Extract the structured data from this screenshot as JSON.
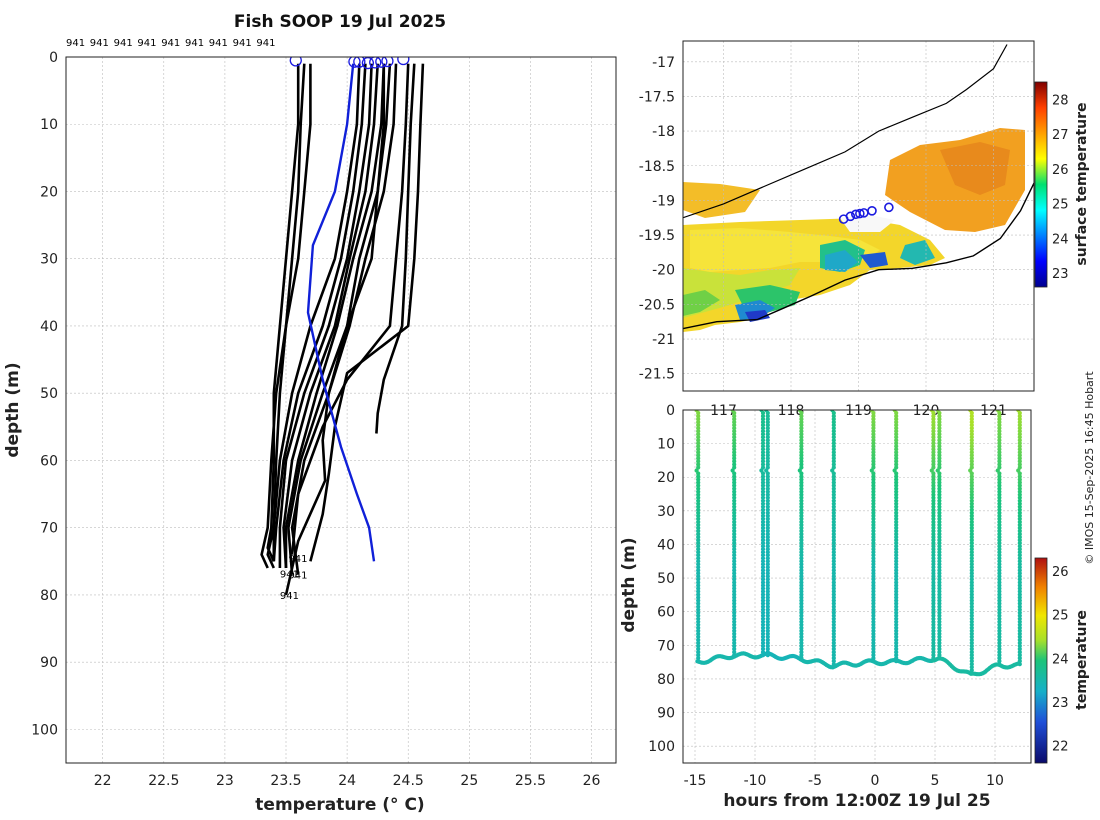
{
  "figure": {
    "credit": "© IMOS 15-Sep-2025 16:45 Hobart"
  },
  "colors": {
    "profile_line": "#000000",
    "mean_profile": "#1020d8",
    "marker_circle": "#1a1ae0",
    "coastline": "#000000"
  },
  "chart_data": [
    {
      "id": "profiles",
      "type": "line",
      "title": "Fish SOOP 19 Jul 2025",
      "xlabel": "temperature (° C)",
      "ylabel": "depth (m)",
      "xlim": [
        21.7,
        26.2
      ],
      "ylim": [
        105,
        0
      ],
      "xticks": [
        "22",
        "22.5",
        "23",
        "23.5",
        "24",
        "24.5",
        "25",
        "25.5",
        "26"
      ],
      "xtick_values": [
        22,
        22.5,
        23,
        23.5,
        24,
        24.5,
        25,
        25.5,
        26
      ],
      "yticks": [
        "0",
        "10",
        "20",
        "30",
        "40",
        "50",
        "60",
        "70",
        "80",
        "90",
        "100"
      ],
      "ytick_values": [
        0,
        10,
        20,
        30,
        40,
        50,
        60,
        70,
        80,
        90,
        100
      ],
      "grid": true,
      "top_labels": [
        "941",
        "941",
        "941",
        "941",
        "941",
        "941",
        "941",
        "941",
        "941"
      ],
      "bottom_annotations": [
        {
          "text": "941",
          "t": 23.52,
          "d": 74.5
        },
        {
          "text": "941",
          "t": 23.45,
          "d": 76.8
        },
        {
          "text": "941",
          "t": 23.52,
          "d": 77.0
        },
        {
          "text": "941",
          "t": 23.45,
          "d": 80.0
        }
      ],
      "surface_markers": [
        {
          "t": 23.58,
          "d": 0.5
        },
        {
          "t": 24.06,
          "d": 0.7
        },
        {
          "t": 24.1,
          "d": 0.7
        },
        {
          "t": 24.17,
          "d": 0.9
        },
        {
          "t": 24.23,
          "d": 0.8
        },
        {
          "t": 24.28,
          "d": 0.7
        },
        {
          "t": 24.33,
          "d": 0.6
        },
        {
          "t": 24.46,
          "d": 0.3
        }
      ],
      "series": [
        {
          "name": "profile-1",
          "t": [
            23.6,
            23.6,
            23.55,
            23.5,
            23.45,
            23.4,
            23.4,
            23.38,
            23.35,
            23.4
          ],
          "d": [
            1,
            10,
            20,
            30,
            40,
            50,
            60,
            70,
            73,
            75
          ]
        },
        {
          "name": "profile-2",
          "t": [
            23.65,
            23.62,
            23.6,
            23.55,
            23.5,
            23.45,
            23.42,
            23.4,
            23.35,
            23.4
          ],
          "d": [
            1,
            10,
            20,
            30,
            40,
            50,
            60,
            70,
            74,
            76
          ]
        },
        {
          "name": "profile-3",
          "t": [
            23.7,
            23.7,
            23.65,
            23.6,
            23.5,
            23.42,
            23.38,
            23.35,
            23.3,
            23.35
          ],
          "d": [
            1,
            10,
            20,
            30,
            40,
            50,
            60,
            70,
            74,
            76
          ]
        },
        {
          "name": "profile-4",
          "t": [
            24.1,
            24.08,
            24.0,
            23.9,
            23.7,
            23.55,
            23.45,
            23.4,
            23.4
          ],
          "d": [
            1,
            10,
            20,
            30,
            40,
            50,
            60,
            70,
            75
          ]
        },
        {
          "name": "profile-5",
          "t": [
            24.15,
            24.12,
            24.05,
            23.95,
            23.8,
            23.6,
            23.48,
            23.42,
            23.4
          ],
          "d": [
            1,
            10,
            20,
            30,
            40,
            50,
            60,
            70,
            75
          ]
        },
        {
          "name": "profile-6",
          "t": [
            24.2,
            24.18,
            24.1,
            24.0,
            23.85,
            23.65,
            23.5,
            23.45,
            23.45
          ],
          "d": [
            1,
            10,
            20,
            30,
            40,
            50,
            60,
            70,
            76
          ]
        },
        {
          "name": "profile-7",
          "t": [
            24.25,
            24.22,
            24.15,
            24.02,
            23.9,
            23.7,
            23.55,
            23.48,
            23.5
          ],
          "d": [
            1,
            10,
            20,
            30,
            40,
            50,
            60,
            70,
            76
          ]
        },
        {
          "name": "profile-8",
          "t": [
            24.3,
            24.28,
            24.2,
            24.05,
            23.92,
            23.75,
            23.6,
            23.5,
            23.5
          ],
          "d": [
            1,
            10,
            20,
            30,
            40,
            50,
            60,
            70,
            76
          ]
        },
        {
          "name": "profile-9",
          "t": [
            24.35,
            24.32,
            24.25,
            24.1,
            24.0,
            23.8,
            23.62,
            23.52,
            23.55
          ],
          "d": [
            1,
            10,
            20,
            30,
            40,
            50,
            60,
            70,
            77
          ]
        },
        {
          "name": "profile-10",
          "t": [
            24.4,
            24.38,
            24.3,
            24.15,
            24.02,
            23.85,
            23.65,
            23.55,
            23.6
          ],
          "d": [
            1,
            10,
            20,
            30,
            40,
            50,
            60,
            70,
            77
          ]
        },
        {
          "name": "profile-11",
          "t": [
            24.5,
            24.48,
            24.45,
            24.4,
            24.35,
            24.0,
            23.8,
            23.6,
            23.55
          ],
          "d": [
            1,
            10,
            20,
            30,
            40,
            48,
            55,
            65,
            74
          ]
        },
        {
          "name": "profile-12",
          "t": [
            24.55,
            24.52,
            24.5,
            24.48,
            24.45,
            24.3,
            24.25,
            24.24
          ],
          "d": [
            1,
            10,
            20,
            30,
            40,
            48,
            53,
            56
          ]
        },
        {
          "name": "profile-13",
          "t": [
            24.62,
            24.6,
            24.58,
            24.55,
            24.5,
            24.0,
            23.9,
            23.85,
            23.8,
            23.7
          ],
          "d": [
            1,
            10,
            20,
            30,
            40,
            47,
            55,
            62,
            68,
            75
          ]
        },
        {
          "name": "profile-14",
          "t": [
            24.3,
            24.3,
            24.25,
            24.2,
            24.0,
            23.85,
            23.8,
            23.82,
            23.6,
            23.5
          ],
          "d": [
            1,
            10,
            20,
            30,
            40,
            50,
            57,
            63,
            72,
            80
          ]
        }
      ],
      "mean_profile": {
        "name": "mean",
        "t": [
          24.05,
          24.0,
          23.9,
          23.72,
          23.68,
          23.8,
          23.95,
          24.08,
          24.18,
          24.22
        ],
        "d": [
          1,
          10,
          20,
          28,
          38,
          48,
          58,
          65,
          70,
          75
        ]
      }
    },
    {
      "id": "map",
      "type": "heatmap",
      "title": "",
      "xlabel": "",
      "ylabel": "",
      "xlim": [
        116.4,
        121.6
      ],
      "ylim": [
        -21.75,
        -16.7
      ],
      "xticks": [
        "117",
        "118",
        "119",
        "120",
        "121"
      ],
      "xtick_values": [
        117,
        118,
        119,
        120,
        121
      ],
      "yticks": [
        "-17",
        "-17.5",
        "-18",
        "-18.5",
        "-19",
        "-19.5",
        "-20",
        "-20.5",
        "-21",
        "-21.5"
      ],
      "ytick_values": [
        -17,
        -17.5,
        -18,
        -18.5,
        -19,
        -19.5,
        -20,
        -20.5,
        -21,
        -21.5
      ],
      "grid": true,
      "colorbar": {
        "label": "surface temperature",
        "ticks": [
          "23",
          "24",
          "25",
          "26",
          "27",
          "28"
        ],
        "tick_values": [
          23,
          24,
          25,
          26,
          27,
          28
        ],
        "clim": [
          22.6,
          28.5
        ]
      },
      "sst_region_values": [
        {
          "name": "northeast-warm",
          "value": 27.0
        },
        {
          "name": "central-band",
          "value": 26.2
        },
        {
          "name": "southern-coastal",
          "value": 24.2
        },
        {
          "name": "western-nearshore",
          "value": 25.5
        }
      ],
      "deployment_track": [
        {
          "lon": 118.78,
          "lat": -19.27
        },
        {
          "lon": 118.88,
          "lat": -19.23
        },
        {
          "lon": 118.96,
          "lat": -19.2
        },
        {
          "lon": 119.02,
          "lat": -19.19
        },
        {
          "lon": 119.08,
          "lat": -19.18
        },
        {
          "lon": 119.2,
          "lat": -19.15
        },
        {
          "lon": 119.45,
          "lat": -19.1
        }
      ],
      "shelf_contour": [
        {
          "lon": 116.4,
          "lat": -19.25
        },
        {
          "lon": 117.0,
          "lat": -19.05
        },
        {
          "lon": 117.6,
          "lat": -18.8
        },
        {
          "lon": 118.2,
          "lat": -18.55
        },
        {
          "lon": 118.8,
          "lat": -18.3
        },
        {
          "lon": 119.3,
          "lat": -18.0
        },
        {
          "lon": 119.8,
          "lat": -17.8
        },
        {
          "lon": 120.3,
          "lat": -17.6
        },
        {
          "lon": 120.6,
          "lat": -17.4
        },
        {
          "lon": 121.0,
          "lat": -17.1
        },
        {
          "lon": 121.2,
          "lat": -16.75
        }
      ],
      "coastline": [
        {
          "lon": 116.4,
          "lat": -20.85
        },
        {
          "lon": 116.9,
          "lat": -20.75
        },
        {
          "lon": 117.5,
          "lat": -20.72
        },
        {
          "lon": 117.9,
          "lat": -20.55
        },
        {
          "lon": 118.3,
          "lat": -20.38
        },
        {
          "lon": 118.8,
          "lat": -20.15
        },
        {
          "lon": 119.3,
          "lat": -20.0
        },
        {
          "lon": 119.8,
          "lat": -19.98
        },
        {
          "lon": 120.3,
          "lat": -19.9
        },
        {
          "lon": 120.7,
          "lat": -19.8
        },
        {
          "lon": 121.1,
          "lat": -19.55
        },
        {
          "lon": 121.4,
          "lat": -19.15
        },
        {
          "lon": 121.6,
          "lat": -18.75
        }
      ]
    },
    {
      "id": "timeseries",
      "type": "scatter",
      "title": "",
      "xlabel": "hours from 12:00Z 19 Jul 25",
      "ylabel": "depth (m)",
      "xlim": [
        -16,
        13
      ],
      "ylim": [
        105,
        0
      ],
      "xticks": [
        "-15",
        "-10",
        "-5",
        "0",
        "5",
        "10"
      ],
      "xtick_values": [
        -15,
        -10,
        -5,
        0,
        5,
        10
      ],
      "yticks": [
        "0",
        "10",
        "20",
        "30",
        "40",
        "50",
        "60",
        "70",
        "80",
        "90",
        "100"
      ],
      "ytick_values": [
        0,
        10,
        20,
        30,
        40,
        50,
        60,
        70,
        80,
        90,
        100
      ],
      "grid": true,
      "colorbar": {
        "label": "temperature",
        "ticks": [
          "22",
          "23",
          "24",
          "25",
          "26"
        ],
        "tick_values": [
          22,
          23,
          24,
          25,
          26
        ],
        "clim": [
          21.6,
          26.3
        ]
      },
      "series": [
        {
          "name": "cast-1",
          "hours": -14.8,
          "bottom": 75,
          "surface_temp": 24.3,
          "bottom_temp": 23.5
        },
        {
          "name": "cast-2",
          "hours": -11.8,
          "bottom": 73,
          "surface_temp": 24.2,
          "bottom_temp": 23.5
        },
        {
          "name": "cast-3",
          "hours": -9.4,
          "bottom": 73,
          "surface_temp": 23.8,
          "bottom_temp": 23.4
        },
        {
          "name": "cast-4",
          "hours": -9.0,
          "bottom": 73,
          "surface_temp": 23.7,
          "bottom_temp": 23.4
        },
        {
          "name": "cast-5",
          "hours": -6.2,
          "bottom": 74,
          "surface_temp": 24.2,
          "bottom_temp": 23.5
        },
        {
          "name": "cast-6",
          "hours": -3.5,
          "bottom": 76,
          "surface_temp": 23.8,
          "bottom_temp": 23.5
        },
        {
          "name": "cast-7",
          "hours": -0.2,
          "bottom": 75,
          "surface_temp": 24.3,
          "bottom_temp": 23.5
        },
        {
          "name": "cast-8",
          "hours": 1.7,
          "bottom": 75,
          "surface_temp": 24.3,
          "bottom_temp": 23.5
        },
        {
          "name": "cast-9",
          "hours": 4.8,
          "bottom": 74,
          "surface_temp": 24.4,
          "bottom_temp": 23.6
        },
        {
          "name": "cast-10",
          "hours": 5.3,
          "bottom": 74,
          "surface_temp": 24.3,
          "bottom_temp": 23.6
        },
        {
          "name": "cast-11",
          "hours": 8.0,
          "bottom": 79,
          "surface_temp": 24.5,
          "bottom_temp": 23.6
        },
        {
          "name": "cast-12",
          "hours": 10.3,
          "bottom": 76,
          "surface_temp": 24.3,
          "bottom_temp": 23.6
        },
        {
          "name": "cast-13",
          "hours": 12.0,
          "bottom": 76,
          "surface_temp": 24.4,
          "bottom_temp": 23.6
        }
      ]
    }
  ]
}
